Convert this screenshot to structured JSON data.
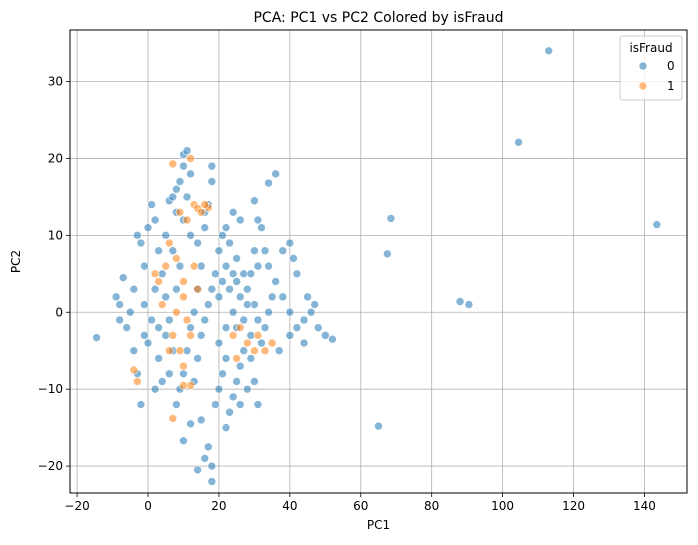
{
  "chart_data": {
    "type": "scatter",
    "title": "PCA: PC1 vs PC2 Colored by isFraud",
    "xlabel": "PC1",
    "ylabel": "PC2",
    "xlim": [
      -22,
      152
    ],
    "ylim": [
      -23.5,
      36.7
    ],
    "xticks": [
      -20,
      0,
      20,
      40,
      60,
      80,
      100,
      120,
      140
    ],
    "yticks": [
      -20,
      -10,
      0,
      10,
      20,
      30
    ],
    "grid": true,
    "legend": {
      "title": "isFraud",
      "placement": "top-right"
    },
    "series": [
      {
        "name": "0",
        "color": "#1f77b4",
        "points": [
          [
            -14.5,
            -3.3
          ],
          [
            -9,
            2
          ],
          [
            -8,
            1
          ],
          [
            -7,
            4.5
          ],
          [
            -8,
            -1
          ],
          [
            -6,
            -2
          ],
          [
            -5,
            0
          ],
          [
            -4,
            3
          ],
          [
            -3,
            10
          ],
          [
            -2,
            9
          ],
          [
            -1,
            6
          ],
          [
            -4,
            -5
          ],
          [
            -3,
            -8
          ],
          [
            -2,
            -12
          ],
          [
            0,
            -4
          ],
          [
            -1,
            1
          ],
          [
            1,
            14
          ],
          [
            0,
            11
          ],
          [
            2,
            12
          ],
          [
            3,
            8
          ],
          [
            4,
            5
          ],
          [
            5,
            2
          ],
          [
            6,
            -1
          ],
          [
            3,
            -6
          ],
          [
            2,
            -10
          ],
          [
            4,
            -9
          ],
          [
            5,
            10
          ],
          [
            6,
            14.5
          ],
          [
            7,
            15
          ],
          [
            8,
            16
          ],
          [
            9,
            17
          ],
          [
            10,
            19
          ],
          [
            10,
            20.5
          ],
          [
            11,
            21
          ],
          [
            12,
            18
          ],
          [
            11,
            15
          ],
          [
            8,
            13
          ],
          [
            10,
            12
          ],
          [
            12,
            10
          ],
          [
            14,
            9
          ],
          [
            16,
            11
          ],
          [
            18,
            19
          ],
          [
            18,
            17
          ],
          [
            17,
            14
          ],
          [
            16,
            13
          ],
          [
            15,
            6
          ],
          [
            14,
            3
          ],
          [
            13,
            0
          ],
          [
            12,
            -2
          ],
          [
            11,
            -5
          ],
          [
            10,
            -8
          ],
          [
            9,
            -10
          ],
          [
            8,
            -12
          ],
          [
            10,
            -16.7
          ],
          [
            12,
            -14.5
          ],
          [
            14,
            -20.5
          ],
          [
            15,
            -14
          ],
          [
            16,
            -19
          ],
          [
            17,
            -17.5
          ],
          [
            18,
            -22
          ],
          [
            18,
            -20
          ],
          [
            19,
            -12
          ],
          [
            20,
            -10
          ],
          [
            21,
            -8
          ],
          [
            22,
            -6
          ],
          [
            20,
            -4
          ],
          [
            22,
            -2
          ],
          [
            24,
            0
          ],
          [
            26,
            2
          ],
          [
            25,
            4
          ],
          [
            22,
            6
          ],
          [
            20,
            8
          ],
          [
            21,
            10
          ],
          [
            23,
            9
          ],
          [
            25,
            7
          ],
          [
            27,
            5
          ],
          [
            28,
            3
          ],
          [
            30,
            1
          ],
          [
            31,
            -1
          ],
          [
            29,
            -3
          ],
          [
            27,
            -5
          ],
          [
            26,
            -7
          ],
          [
            25,
            -9
          ],
          [
            24,
            -11
          ],
          [
            23,
            -13
          ],
          [
            22,
            -15
          ],
          [
            26,
            -12
          ],
          [
            28,
            -10
          ],
          [
            30,
            -9
          ],
          [
            31,
            -12
          ],
          [
            29,
            -6
          ],
          [
            32,
            -4
          ],
          [
            33,
            -2
          ],
          [
            34,
            0
          ],
          [
            35,
            2
          ],
          [
            36,
            4
          ],
          [
            34,
            6
          ],
          [
            33,
            8
          ],
          [
            32,
            11
          ],
          [
            31,
            12
          ],
          [
            30,
            14.5
          ],
          [
            34,
            16.8
          ],
          [
            36,
            18
          ],
          [
            38,
            8
          ],
          [
            40,
            9
          ],
          [
            41,
            7
          ],
          [
            42,
            5
          ],
          [
            38,
            2
          ],
          [
            40,
            0
          ],
          [
            42,
            -2
          ],
          [
            44,
            -1
          ],
          [
            46,
            0
          ],
          [
            48,
            -2
          ],
          [
            50,
            -3
          ],
          [
            52,
            -3.5
          ],
          [
            45,
            2
          ],
          [
            47,
            1
          ],
          [
            44,
            -4
          ],
          [
            40,
            -3
          ],
          [
            37,
            -5
          ],
          [
            24,
            13
          ],
          [
            26,
            12
          ],
          [
            22,
            11
          ],
          [
            19,
            5
          ],
          [
            18,
            3
          ],
          [
            17,
            1
          ],
          [
            16,
            -1
          ],
          [
            15,
            -3
          ],
          [
            14,
            -6
          ],
          [
            13,
            -9
          ],
          [
            7,
            -5
          ],
          [
            6,
            -8
          ],
          [
            5,
            -3
          ],
          [
            8,
            3
          ],
          [
            9,
            6
          ],
          [
            7,
            8
          ],
          [
            1,
            -1
          ],
          [
            -1,
            -3
          ],
          [
            2,
            3
          ],
          [
            3,
            -2
          ],
          [
            20,
            2
          ],
          [
            21,
            4
          ],
          [
            23,
            3
          ],
          [
            24,
            5
          ],
          [
            25,
            -2
          ],
          [
            27,
            -1
          ],
          [
            28,
            1
          ],
          [
            29,
            5
          ],
          [
            30,
            8
          ],
          [
            31,
            6
          ],
          [
            68.5,
            12.2
          ],
          [
            67.5,
            7.6
          ],
          [
            65,
            -14.8
          ],
          [
            88,
            1.4
          ],
          [
            90.5,
            1
          ],
          [
            104.5,
            22.1
          ],
          [
            113,
            34
          ],
          [
            143.5,
            11.4
          ]
        ]
      },
      {
        "name": "1",
        "color": "#ff7f0e",
        "points": [
          [
            7,
            19.3
          ],
          [
            9,
            13
          ],
          [
            11,
            12
          ],
          [
            12,
            20
          ],
          [
            13,
            14
          ],
          [
            14,
            13.5
          ],
          [
            15,
            13
          ],
          [
            17,
            13.6
          ],
          [
            16,
            14
          ],
          [
            8,
            7
          ],
          [
            6,
            9
          ],
          [
            5,
            6
          ],
          [
            3,
            4
          ],
          [
            2,
            5
          ],
          [
            4,
            1
          ],
          [
            10,
            2
          ],
          [
            12,
            -3
          ],
          [
            11,
            -1
          ],
          [
            8,
            0
          ],
          [
            10,
            4
          ],
          [
            6,
            -5
          ],
          [
            7,
            -3
          ],
          [
            9,
            -5
          ],
          [
            10,
            -7
          ],
          [
            12,
            -9.5
          ],
          [
            10,
            -9.5
          ],
          [
            7,
            -13.8
          ],
          [
            -4,
            -7.5
          ],
          [
            -3,
            -9
          ],
          [
            28,
            -4
          ],
          [
            30,
            -5
          ],
          [
            31,
            -3
          ],
          [
            33,
            -5
          ],
          [
            35,
            -4
          ],
          [
            26,
            -2
          ],
          [
            25,
            -6
          ],
          [
            24,
            -3
          ],
          [
            13,
            6
          ],
          [
            14,
            3
          ]
        ]
      }
    ]
  }
}
